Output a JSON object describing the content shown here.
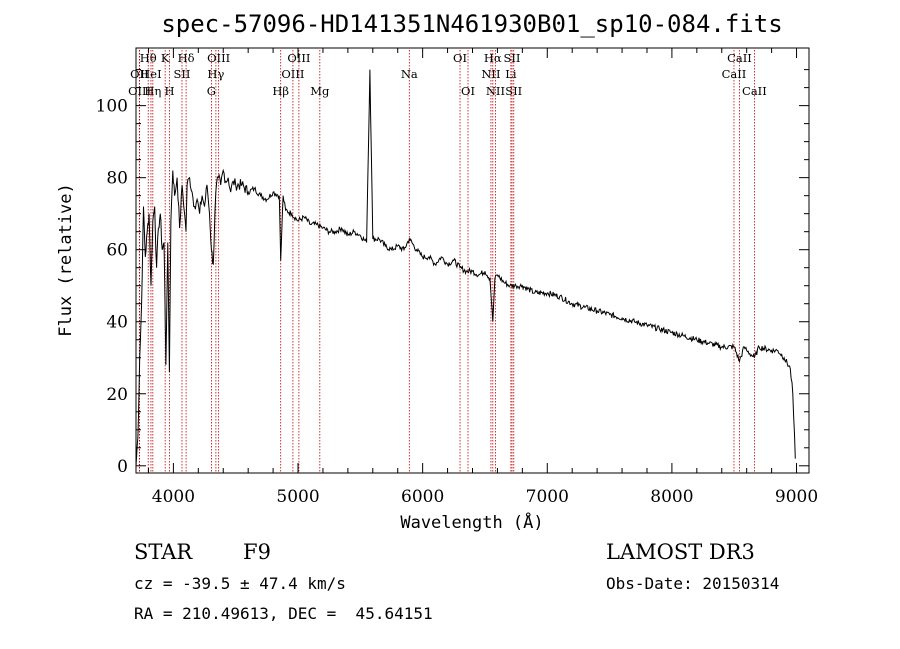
{
  "chart_data": {
    "type": "line",
    "title": "spec-57096-HD141351N461930B01_sp10-084.fits",
    "xlabel": "Wavelength (Å)",
    "ylabel": "Flux (relative)",
    "xlim": [
      3700,
      9100
    ],
    "ylim": [
      -2,
      116
    ],
    "x_ticks": [
      4000,
      5000,
      6000,
      7000,
      8000,
      9000
    ],
    "y_ticks": [
      0,
      20,
      40,
      60,
      80,
      100
    ],
    "series": [
      {
        "name": "spectrum",
        "x": [
          3700,
          3715,
          3730,
          3745,
          3760,
          3775,
          3790,
          3805,
          3820,
          3835,
          3850,
          3865,
          3880,
          3895,
          3910,
          3925,
          3940,
          3955,
          3968,
          3980,
          3995,
          4010,
          4030,
          4050,
          4070,
          4090,
          4101,
          4110,
          4130,
          4150,
          4170,
          4190,
          4210,
          4230,
          4250,
          4270,
          4290,
          4305,
          4320,
          4340,
          4360,
          4380,
          4400,
          4420,
          4440,
          4460,
          4480,
          4500,
          4550,
          4600,
          4650,
          4700,
          4750,
          4800,
          4850,
          4861,
          4880,
          4900,
          4950,
          5000,
          5050,
          5100,
          5150,
          5200,
          5250,
          5300,
          5350,
          5400,
          5450,
          5500,
          5550,
          5577,
          5600,
          5650,
          5700,
          5750,
          5800,
          5850,
          5893,
          5950,
          6000,
          6050,
          6100,
          6150,
          6200,
          6250,
          6300,
          6350,
          6400,
          6450,
          6500,
          6540,
          6563,
          6580,
          6600,
          6650,
          6700,
          6750,
          6800,
          6900,
          7000,
          7100,
          7200,
          7300,
          7400,
          7500,
          7600,
          7700,
          7800,
          7900,
          8000,
          8100,
          8200,
          8300,
          8400,
          8500,
          8542,
          8580,
          8600,
          8662,
          8700,
          8800,
          8850,
          8900,
          8950,
          8970,
          8990
        ],
        "values": [
          0,
          8,
          30,
          45,
          72,
          58,
          65,
          70,
          50,
          68,
          72,
          55,
          66,
          70,
          60,
          62,
          28,
          62,
          26,
          68,
          82,
          75,
          80,
          66,
          78,
          70,
          65,
          78,
          80,
          76,
          72,
          74,
          70,
          75,
          72,
          78,
          70,
          60,
          56,
          76,
          80,
          78,
          82,
          79,
          80,
          76,
          79,
          78,
          78,
          76,
          77,
          75,
          74,
          76,
          75,
          57,
          75,
          71,
          70,
          68,
          69,
          67,
          67,
          66,
          65,
          65,
          66,
          64,
          65,
          64,
          62,
          110,
          63,
          63,
          61,
          60,
          61,
          60,
          63,
          60,
          58,
          58,
          56,
          58,
          56,
          57,
          55,
          54,
          54,
          53,
          54,
          52,
          40,
          52,
          53,
          51,
          50,
          50,
          50,
          48,
          48,
          47,
          45,
          44,
          43,
          42,
          41,
          40,
          39,
          38,
          37,
          36,
          35,
          34,
          33,
          33,
          29,
          33,
          32,
          30,
          33,
          32,
          32,
          30,
          27,
          20,
          2
        ]
      }
    ],
    "spectral_lines": [
      {
        "name": "Hθ",
        "wavelength": 3798,
        "row": 0
      },
      {
        "name": "OII",
        "wavelength": 3727,
        "row": 1
      },
      {
        "name": "OIII",
        "wavelength": 3729,
        "row": 2
      },
      {
        "name": "HeI",
        "wavelength": 3820,
        "row": 1
      },
      {
        "name": "Hη",
        "wavelength": 3835,
        "row": 2
      },
      {
        "name": "K",
        "wavelength": 3934,
        "row": 0
      },
      {
        "name": "SII",
        "wavelength": 4069,
        "row": 1
      },
      {
        "name": "H",
        "wavelength": 3969,
        "row": 2
      },
      {
        "name": "Hδ",
        "wavelength": 4102,
        "row": 0
      },
      {
        "name": "OIII",
        "wavelength": 4363,
        "row": 0
      },
      {
        "name": "Hγ",
        "wavelength": 4341,
        "row": 1
      },
      {
        "name": "G",
        "wavelength": 4305,
        "row": 2
      },
      {
        "name": "OIII",
        "wavelength": 5007,
        "row": 0
      },
      {
        "name": "OIII",
        "wavelength": 4959,
        "row": 1
      },
      {
        "name": "Hβ",
        "wavelength": 4861,
        "row": 2
      },
      {
        "name": "Mg",
        "wavelength": 5175,
        "row": 2
      },
      {
        "name": "Na",
        "wavelength": 5893,
        "row": 1
      },
      {
        "name": "OI",
        "wavelength": 6300,
        "row": 0
      },
      {
        "name": "OI",
        "wavelength": 6364,
        "row": 2
      },
      {
        "name": "Hα",
        "wavelength": 6563,
        "row": 0
      },
      {
        "name": "NII",
        "wavelength": 6548,
        "row": 1
      },
      {
        "name": "NII",
        "wavelength": 6584,
        "row": 2
      },
      {
        "name": "SII",
        "wavelength": 6717,
        "row": 0
      },
      {
        "name": "Li",
        "wavelength": 6708,
        "row": 1
      },
      {
        "name": "SII",
        "wavelength": 6731,
        "row": 2
      },
      {
        "name": "CaII",
        "wavelength": 8542,
        "row": 0
      },
      {
        "name": "CaII",
        "wavelength": 8498,
        "row": 1
      },
      {
        "name": "CaII",
        "wavelength": 8662,
        "row": 2
      }
    ],
    "line_marker_color": "#c00000"
  },
  "info": {
    "object_class": "STAR",
    "subclass": "F9",
    "survey": "LAMOST DR3",
    "redshift": "cz = -39.5 ± 47.4 km/s",
    "obs_date": "Obs-Date: 20150314",
    "coords": "RA = 210.49613, DEC =  45.64151"
  }
}
